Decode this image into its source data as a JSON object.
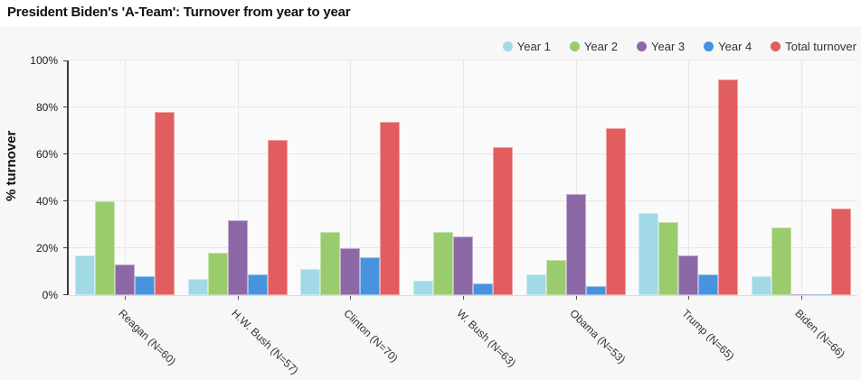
{
  "title": "President Biden's 'A-Team': Turnover from year to year",
  "chart_data": {
    "type": "bar",
    "title": "President Biden's 'A-Team': Turnover from year to year",
    "xlabel": "",
    "ylabel": "% turnover",
    "ylim": [
      0,
      100
    ],
    "yticks": [
      "0%",
      "20%",
      "40%",
      "60%",
      "80%",
      "100%"
    ],
    "grid": true,
    "legend_position": "top-right",
    "categories": [
      "Reagan (N=60)",
      "H.W. Bush (N=57)",
      "Clinton (N=70)",
      "W. Bush (N=63)",
      "Obama (N=53)",
      "Trump (N=65)",
      "Biden (N=66)"
    ],
    "series": [
      {
        "name": "Year 1",
        "color": "#a1d9e6",
        "values": [
          17,
          7,
          11,
          6,
          9,
          35,
          8
        ]
      },
      {
        "name": "Year 2",
        "color": "#9acb6d",
        "values": [
          40,
          18,
          27,
          27,
          15,
          31,
          29
        ]
      },
      {
        "name": "Year 3",
        "color": "#8d68a6",
        "values": [
          13,
          32,
          20,
          25,
          43,
          17,
          0.5
        ]
      },
      {
        "name": "Year 4",
        "color": "#4793dd",
        "values": [
          8,
          9,
          16,
          5,
          4,
          9,
          0.5
        ]
      },
      {
        "name": "Total turnover",
        "color": "#e25d5d",
        "values": [
          78,
          66,
          74,
          63,
          71,
          92,
          37
        ]
      }
    ]
  }
}
